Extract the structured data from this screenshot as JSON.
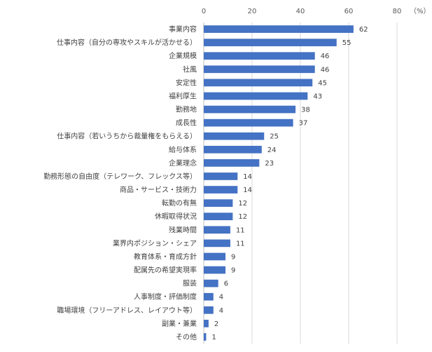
{
  "chart_data": {
    "type": "bar",
    "orientation": "horizontal",
    "unit_label": "（%）",
    "xlim": [
      0,
      80
    ],
    "x_ticks": [
      "0",
      "20",
      "40",
      "60",
      "80"
    ],
    "grid": "vertical",
    "bar_color": "#4472C4",
    "categories": [
      "事業内容",
      "仕事内容（自分の専攻やスキルが活かせる）",
      "企業規模",
      "社風",
      "安定性",
      "福利厚生",
      "勤務地",
      "成長性",
      "仕事内容（若いうちから裁量権をもらえる）",
      "給与体系",
      "企業理念",
      "勤務形態の自由度（テレワーク、フレックス等）",
      "商品・サービス・技術力",
      "転勤の有無",
      "休暇取得状況",
      "残業時間",
      "業界内ポジション・シェア",
      "教育体系・育成方針",
      "配属先の希望実現率",
      "服装",
      "人事制度・評価制度",
      "職場環境（フリーアドレス、レイアウト等）",
      "副業・兼業",
      "その他"
    ],
    "values": [
      62,
      55,
      46,
      46,
      45,
      43,
      38,
      37,
      25,
      24,
      23,
      14,
      14,
      12,
      12,
      11,
      11,
      9,
      9,
      6,
      4,
      4,
      2,
      1
    ]
  }
}
